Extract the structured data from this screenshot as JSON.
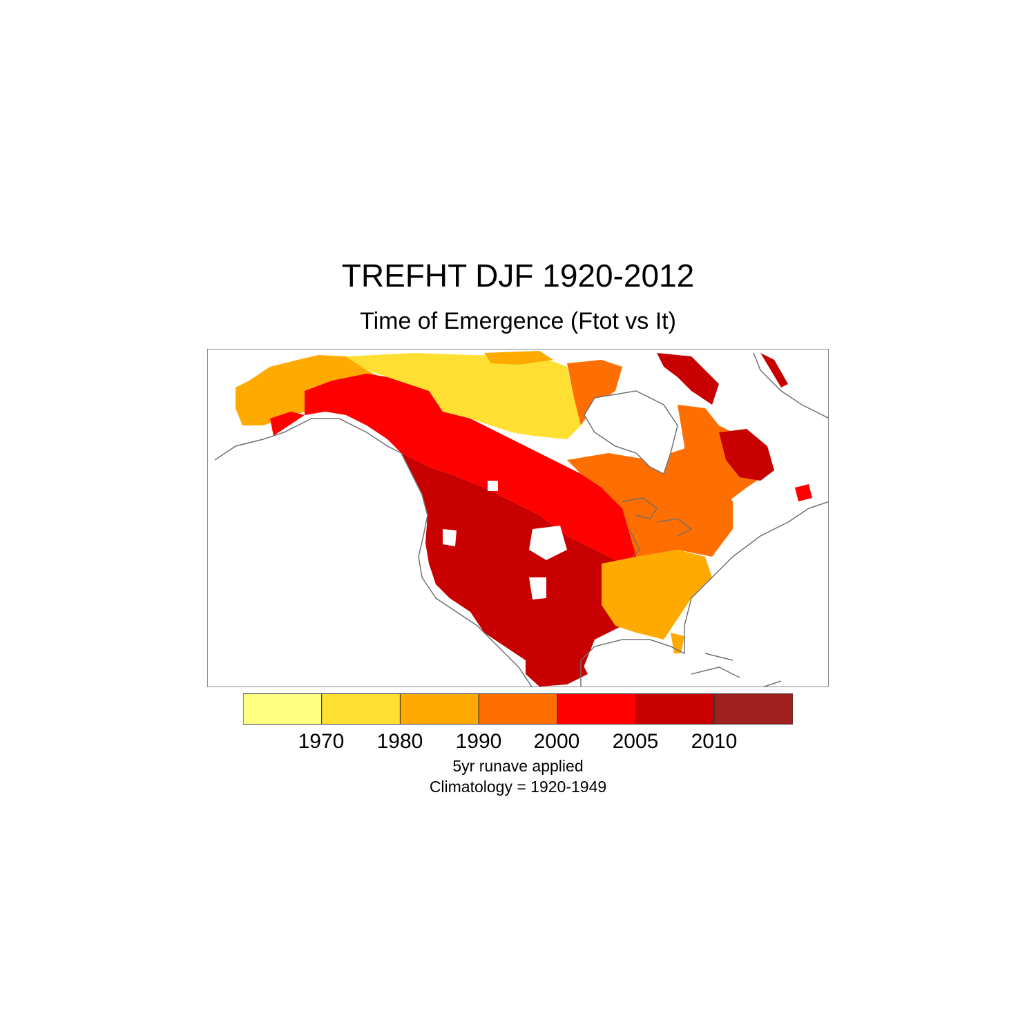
{
  "title": "TREFHT DJF 1920-2012",
  "subtitle": "Time of Emergence (Ftot vs It)",
  "colorbar": {
    "tick_labels": [
      "1970",
      "1980",
      "1990",
      "2000",
      "2005",
      "2010"
    ],
    "bins": [
      {
        "label": "< 1970",
        "color": "#ffff80"
      },
      {
        "label": "1970-1980",
        "color": "#ffe032"
      },
      {
        "label": "1980-1990",
        "color": "#ffaa00"
      },
      {
        "label": "1990-2000",
        "color": "#ff6e00"
      },
      {
        "label": "2000-2005",
        "color": "#ff0000"
      },
      {
        "label": "2005-2010",
        "color": "#c80000"
      },
      {
        "label": "> 2010",
        "color": "#a02020"
      }
    ]
  },
  "notes": {
    "line1": "5yr runave applied",
    "line2": "Climatology = 1920-1949"
  },
  "map": {
    "region": "North America",
    "coastline_color": "#707070",
    "missing_color": "#ffffff"
  }
}
